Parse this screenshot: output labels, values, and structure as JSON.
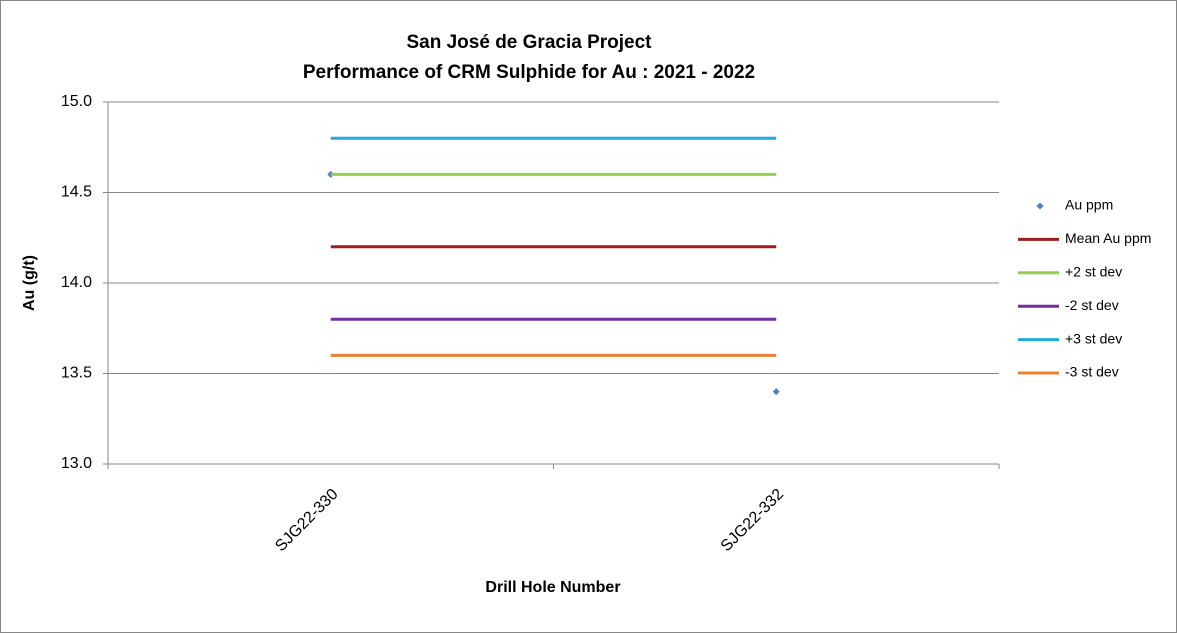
{
  "chart_data": {
    "type": "line",
    "title": "San José de Gracia Project",
    "subtitle": "Performance of CRM Sulphide for Au : 2021 - 2022",
    "x_label": "Drill Hole Number",
    "y_label": "Au (g/t)",
    "categories": [
      "SJG22-330",
      "SJG22-332"
    ],
    "series": [
      {
        "name": "Au ppm",
        "color": "#4f81bd",
        "style": "marker",
        "values": [
          14.6,
          13.4
        ]
      },
      {
        "name": "Mean Au ppm",
        "color": "#a01c1c",
        "style": "line",
        "values": [
          14.2,
          14.2
        ]
      },
      {
        "name": "+2 st dev",
        "color": "#92d050",
        "style": "line",
        "values": [
          14.6,
          14.6
        ]
      },
      {
        "name": "-2 st dev",
        "color": "#7030a0",
        "style": "line",
        "values": [
          13.8,
          13.8
        ]
      },
      {
        "name": "+3 st dev",
        "color": "#1fa8d9",
        "style": "line",
        "values": [
          14.8,
          14.8
        ]
      },
      {
        "name": "-3 st dev",
        "color": "#f07f30",
        "style": "line",
        "values": [
          13.6,
          13.6
        ]
      }
    ],
    "ylim": [
      13,
      15
    ],
    "yticks": [
      {
        "value": 13,
        "label": "13.0"
      },
      13.5,
      {
        "value": 14,
        "label": "14.0"
      },
      14.5,
      {
        "value": 15,
        "label": "15.0"
      }
    ],
    "grid": true,
    "legend": "right"
  }
}
